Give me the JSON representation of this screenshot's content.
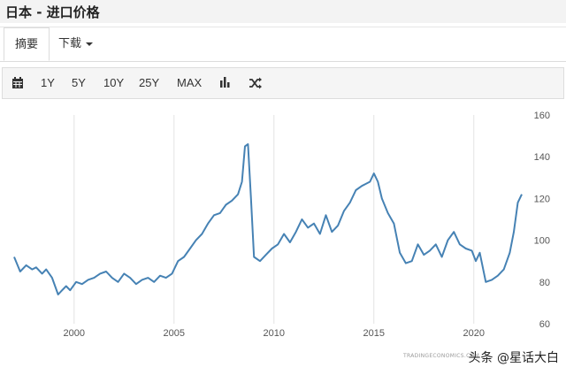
{
  "page": {
    "title": "日本 - 进口价格"
  },
  "tabs": [
    {
      "label": "摘要"
    },
    {
      "label": "下载"
    }
  ],
  "toolbar": {
    "calendar_icon": "calendar-icon",
    "ranges": [
      "1Y",
      "5Y",
      "10Y",
      "25Y",
      "MAX"
    ],
    "bar_chart_icon": "bar-chart-icon",
    "shuffle_icon": "shuffle-icon"
  },
  "source_label": "TRADINGECONOMICS.COM",
  "watermark": "头条 @星话大白",
  "colors": {
    "line": "#4682b4",
    "grid": "#e3e3e3",
    "axis_text": "#555555"
  },
  "chart_data": {
    "type": "line",
    "title": "",
    "xlabel": "",
    "ylabel": "",
    "xlim": [
      1997,
      2022.4
    ],
    "ylim": [
      60,
      160
    ],
    "x_ticks": [
      2000,
      2005,
      2010,
      2015,
      2020
    ],
    "y_ticks": [
      60,
      80,
      100,
      120,
      140,
      160
    ],
    "grid": "vertical",
    "y_axis_side": "right",
    "series": [
      {
        "name": "",
        "x": [
          1997.0,
          1997.3,
          1997.6,
          1997.9,
          1998.1,
          1998.4,
          1998.6,
          1998.9,
          1999.2,
          1999.4,
          1999.6,
          1999.8,
          2000.1,
          2000.4,
          2000.7,
          2001.0,
          2001.3,
          2001.6,
          2001.9,
          2002.2,
          2002.5,
          2002.8,
          2003.1,
          2003.4,
          2003.7,
          2004.0,
          2004.3,
          2004.6,
          2004.9,
          2005.2,
          2005.5,
          2005.8,
          2006.1,
          2006.4,
          2006.7,
          2007.0,
          2007.3,
          2007.6,
          2007.9,
          2008.2,
          2008.4,
          2008.55,
          2008.7,
          2008.85,
          2009.0,
          2009.3,
          2009.6,
          2009.9,
          2010.2,
          2010.5,
          2010.8,
          2011.1,
          2011.4,
          2011.7,
          2012.0,
          2012.3,
          2012.6,
          2012.9,
          2013.2,
          2013.5,
          2013.8,
          2014.1,
          2014.4,
          2014.6,
          2014.8,
          2015.0,
          2015.2,
          2015.4,
          2015.7,
          2016.0,
          2016.3,
          2016.6,
          2016.9,
          2017.2,
          2017.5,
          2017.8,
          2018.1,
          2018.4,
          2018.7,
          2019.0,
          2019.3,
          2019.6,
          2019.9,
          2020.1,
          2020.3,
          2020.6,
          2020.9,
          2021.2,
          2021.5,
          2021.8,
          2022.0,
          2022.2,
          2022.4
        ],
        "y": [
          92,
          85,
          88,
          86,
          87,
          84,
          86,
          82,
          74,
          76,
          78,
          76,
          80,
          79,
          81,
          82,
          84,
          85,
          82,
          80,
          84,
          82,
          79,
          81,
          82,
          80,
          83,
          82,
          84,
          90,
          92,
          96,
          100,
          103,
          108,
          112,
          113,
          117,
          119,
          122,
          128,
          145,
          146,
          120,
          92,
          90,
          93,
          96,
          98,
          103,
          99,
          104,
          110,
          106,
          108,
          103,
          112,
          104,
          107,
          114,
          118,
          124,
          126,
          127,
          128,
          132,
          128,
          120,
          113,
          108,
          94,
          89,
          90,
          98,
          93,
          95,
          98,
          92,
          100,
          104,
          98,
          96,
          95,
          90,
          94,
          80,
          81,
          83,
          86,
          94,
          104,
          118,
          122
        ]
      }
    ]
  }
}
